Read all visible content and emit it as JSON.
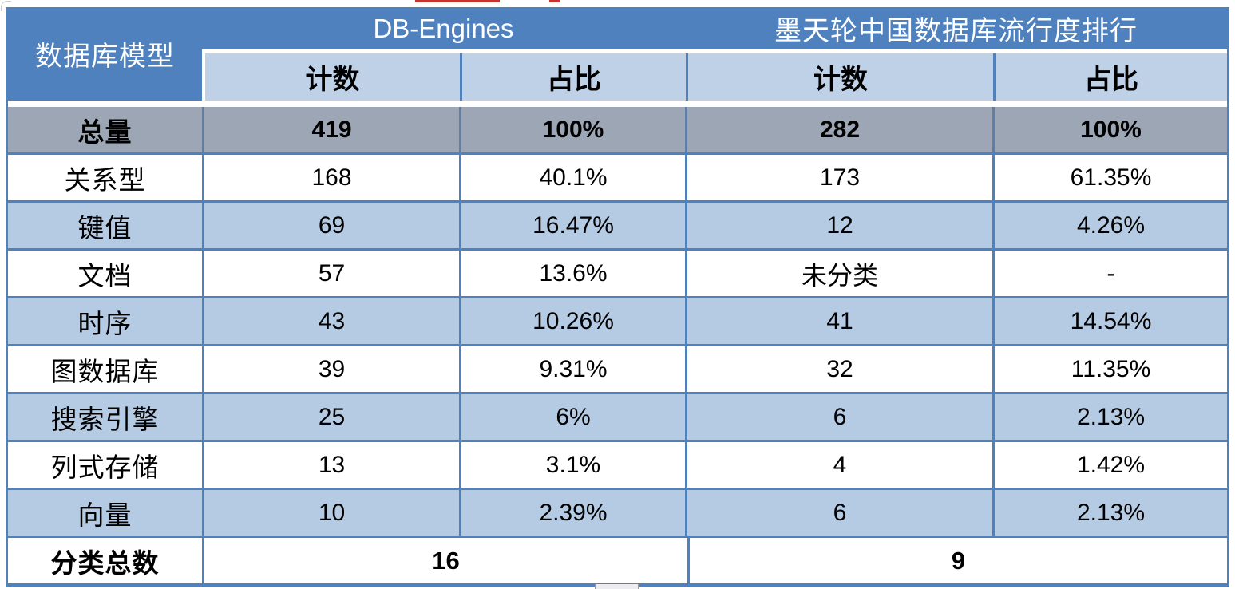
{
  "chart_data": {
    "type": "table",
    "corner_header": "数据库模型",
    "column_groups": [
      {
        "title": "DB-Engines",
        "columns": [
          "计数",
          "占比"
        ]
      },
      {
        "title": "墨天轮中国数据库流行度排行",
        "columns": [
          "计数",
          "占比"
        ]
      }
    ],
    "rows": [
      {
        "label": "总量",
        "cells": [
          "419",
          "100%",
          "282",
          "100%"
        ],
        "emphasis": true
      },
      {
        "label": "关系型",
        "cells": [
          "168",
          "40.1%",
          "173",
          "61.35%"
        ]
      },
      {
        "label": "键值",
        "cells": [
          "69",
          "16.47%",
          "12",
          "4.26%"
        ]
      },
      {
        "label": "文档",
        "cells": [
          "57",
          "13.6%",
          "未分类",
          "-"
        ]
      },
      {
        "label": "时序",
        "cells": [
          "43",
          "10.26%",
          "41",
          "14.54%"
        ]
      },
      {
        "label": "图数据库",
        "cells": [
          "39",
          "9.31%",
          "32",
          "11.35%"
        ]
      },
      {
        "label": "搜索引擎",
        "cells": [
          "25",
          "6%",
          "6",
          "2.13%"
        ]
      },
      {
        "label": "列式存储",
        "cells": [
          "13",
          "3.1%",
          "4",
          "1.42%"
        ]
      },
      {
        "label": "向量",
        "cells": [
          "10",
          "2.39%",
          "6",
          "2.13%"
        ]
      }
    ],
    "footer": {
      "label": "分类总数",
      "db_engines_total": "16",
      "motianlun_total": "9"
    }
  },
  "colors": {
    "header_blue": "#4E81BD",
    "subheader_light_blue": "#BFD1E7",
    "stripe_blue": "#B4CBE3",
    "total_row_gray": "#9DA6B4",
    "grid_line_blue": "#4F81BD",
    "text_dark": "#000000",
    "text_light": "#FFFFFF",
    "artifact_red": "#C4342D"
  }
}
